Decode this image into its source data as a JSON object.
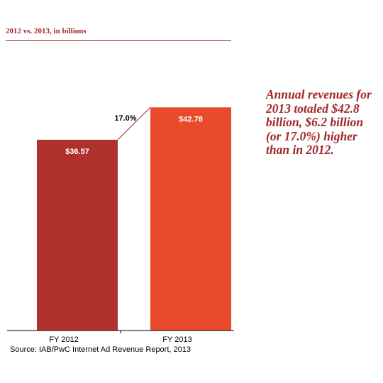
{
  "header": {
    "subtitle": "2012 vs. 2013, in billions"
  },
  "callout": {
    "text": "Annual revenues for 2013 totaled $42.8 billion, $6.2 billion (or 17.0%) higher than in 2012."
  },
  "source": {
    "text": "Source: IAB/PwC Internet Ad Revenue Report, 2013"
  },
  "colors": {
    "accent": "#a0282a",
    "bar_2012": "#b0302b",
    "bar_2013": "#e84a2b"
  },
  "chart_data": {
    "type": "bar",
    "title": "",
    "subtitle": "2012 vs. 2013, in billions",
    "categories": [
      "FY 2012",
      "FY 2013"
    ],
    "values": [
      36.57,
      42.78
    ],
    "data_labels": [
      "$36.57",
      "$42.78"
    ],
    "colors": [
      "#b0302b",
      "#e84a2b"
    ],
    "growth_label": "17.0%",
    "ylim": [
      0,
      46.5
    ],
    "xlabel": "",
    "ylabel": "",
    "grid": false,
    "legend": "none"
  }
}
